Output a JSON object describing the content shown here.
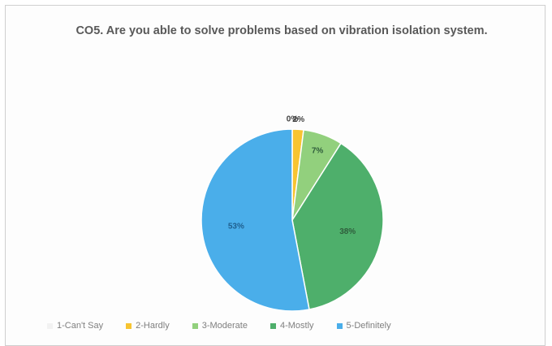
{
  "chart_data": {
    "type": "pie",
    "title": "CO5. Are you able to solve problems based on vibration isolation system.",
    "categories": [
      "1-Can't Say",
      "2-Hardly",
      "3-Moderate",
      "4-Mostly",
      "5-Definitely"
    ],
    "values": [
      0,
      2,
      7,
      38,
      53
    ],
    "data_labels": [
      "0%",
      "2%",
      "7%",
      "38%",
      "53%"
    ],
    "colors": [
      "#f2f2f2",
      "#f7c431",
      "#92d07d",
      "#4eaf6b",
      "#4aaeea"
    ],
    "legend_position": "bottom"
  }
}
